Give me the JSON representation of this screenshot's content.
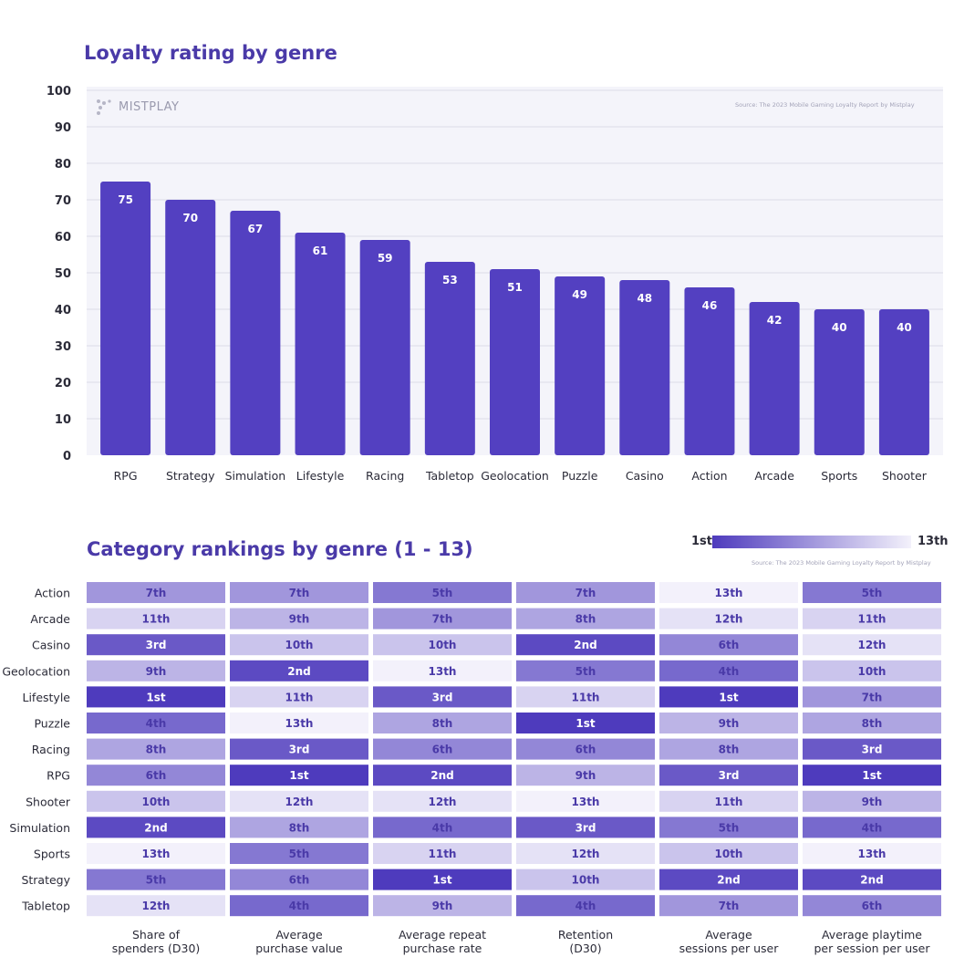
{
  "titles": {
    "bar": "Loyalty rating by genre",
    "heatmap": "Category rankings by genre (1 - 13)"
  },
  "logo_text": "MISTPLAY",
  "bar_source": "Source: The 2023 Mobile Gaming Loyalty Report by Mistplay",
  "heat_source": "Source: The 2023 Mobile Gaming Loyalty Report by Mistplay",
  "legend": {
    "min_label": "1st",
    "max_label": "13th"
  },
  "colors": {
    "bar": "#5340c1",
    "dark": "#4e3bbd",
    "light": "#f3f1fb",
    "title": "#4a3aa8"
  },
  "chart_data": [
    {
      "type": "bar",
      "title": "Loyalty rating by genre",
      "categories": [
        "RPG",
        "Strategy",
        "Simulation",
        "Lifestyle",
        "Racing",
        "Tabletop",
        "Geolocation",
        "Puzzle",
        "Casino",
        "Action",
        "Arcade",
        "Sports",
        "Shooter"
      ],
      "values": [
        75,
        70,
        67,
        61,
        59,
        53,
        51,
        49,
        48,
        46,
        42,
        40,
        40
      ],
      "ylim": [
        0,
        100
      ],
      "yticks": [
        0,
        10,
        20,
        30,
        40,
        50,
        60,
        70,
        80,
        90,
        100
      ],
      "grid": true,
      "data_labels": true
    },
    {
      "type": "heatmap",
      "title": "Category rankings by genre (1 - 13)",
      "rows": [
        "Action",
        "Arcade",
        "Casino",
        "Geolocation",
        "Lifestyle",
        "Puzzle",
        "Racing",
        "RPG",
        "Shooter",
        "Simulation",
        "Sports",
        "Strategy",
        "Tabletop"
      ],
      "columns": [
        [
          "Share of",
          "spenders (D30)"
        ],
        [
          "Average",
          "purchase value"
        ],
        [
          "Average repeat",
          "purchase rate"
        ],
        [
          "Retention",
          "(D30)"
        ],
        [
          "Average",
          "sessions per user"
        ],
        [
          "Average playtime",
          "per session per user"
        ]
      ],
      "values": [
        [
          7,
          7,
          5,
          7,
          13,
          5
        ],
        [
          11,
          9,
          7,
          8,
          12,
          11
        ],
        [
          3,
          10,
          10,
          2,
          6,
          12
        ],
        [
          9,
          2,
          13,
          5,
          4,
          10
        ],
        [
          1,
          11,
          3,
          11,
          1,
          7
        ],
        [
          4,
          13,
          8,
          1,
          9,
          8
        ],
        [
          8,
          3,
          6,
          6,
          8,
          3
        ],
        [
          6,
          1,
          2,
          9,
          3,
          1
        ],
        [
          10,
          12,
          12,
          13,
          11,
          9
        ],
        [
          2,
          8,
          4,
          3,
          5,
          4
        ],
        [
          13,
          5,
          11,
          12,
          10,
          13
        ],
        [
          5,
          6,
          1,
          10,
          2,
          2
        ],
        [
          12,
          4,
          9,
          4,
          7,
          6
        ]
      ],
      "labels": [
        [
          "7th",
          "7th",
          "5th",
          "7th",
          "13th",
          "5th"
        ],
        [
          "11th",
          "9th",
          "7th",
          "8th",
          "12th",
          "11th"
        ],
        [
          "3rd",
          "10th",
          "10th",
          "2nd",
          "6th",
          "12th"
        ],
        [
          "9th",
          "2nd",
          "13th",
          "5th",
          "4th",
          "10th"
        ],
        [
          "1st",
          "11th",
          "3rd",
          "11th",
          "1st",
          "7th"
        ],
        [
          "4th",
          "13th",
          "8th",
          "1st",
          "9th",
          "8th"
        ],
        [
          "8th",
          "3rd",
          "6th",
          "6th",
          "8th",
          "3rd"
        ],
        [
          "6th",
          "1st",
          "2nd",
          "9th",
          "3rd",
          "1st"
        ],
        [
          "10th",
          "12th",
          "12th",
          "13th",
          "11th",
          "9th"
        ],
        [
          "2nd",
          "8th",
          "4th",
          "3rd",
          "5th",
          "4th"
        ],
        [
          "13th",
          "5th",
          "11th",
          "12th",
          "10th",
          "13th"
        ],
        [
          "5th",
          "6th",
          "1st",
          "10th",
          "2nd",
          "2nd"
        ],
        [
          "12th",
          "4th",
          "9th",
          "4th",
          "7th",
          "6th"
        ]
      ],
      "scale": [
        1,
        13
      ]
    }
  ]
}
